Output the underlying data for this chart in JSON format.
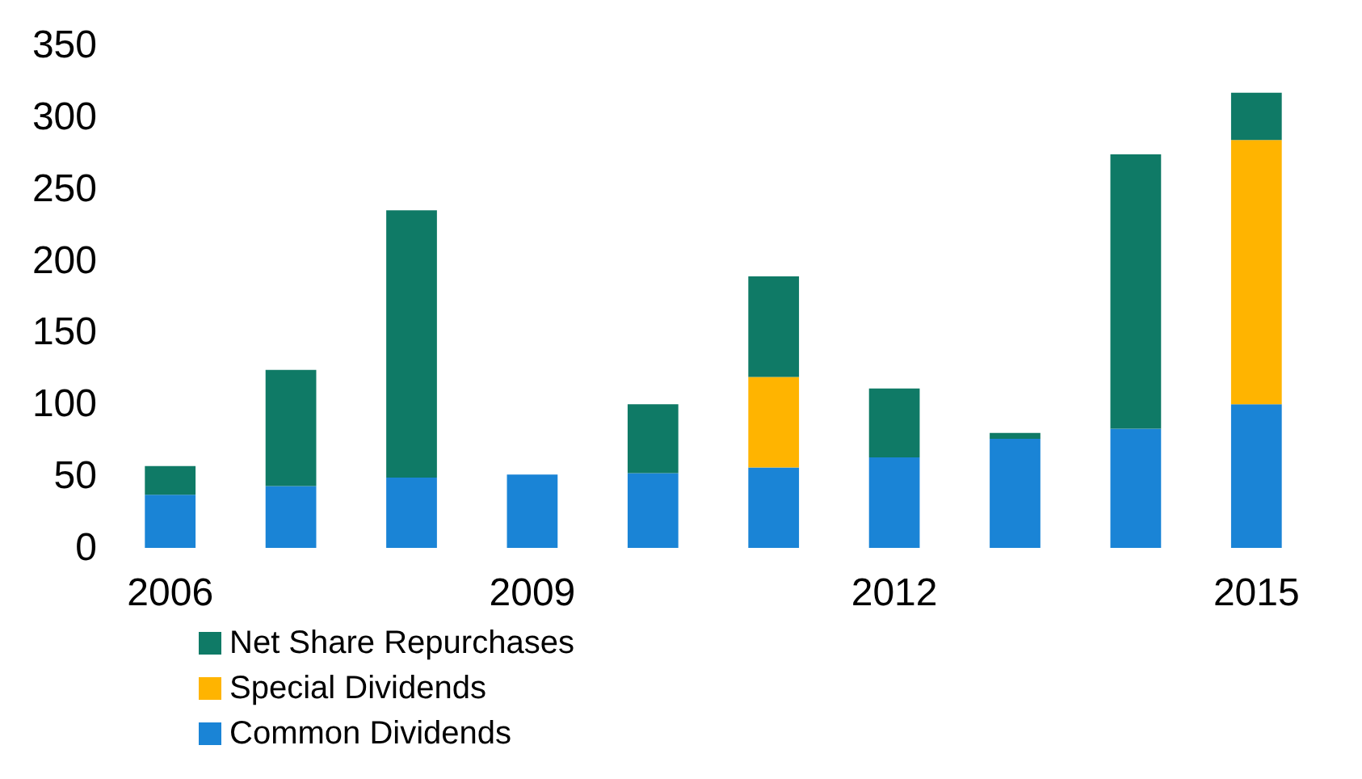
{
  "chart_data": {
    "type": "bar",
    "stacked": true,
    "categories": [
      "2006",
      null,
      null,
      "2009",
      null,
      null,
      "2012",
      null,
      null,
      "2015"
    ],
    "series": [
      {
        "name": "Common Dividends",
        "color": "#1a84d6",
        "values": [
          37,
          43,
          49,
          51,
          52,
          56,
          63,
          76,
          83,
          100
        ]
      },
      {
        "name": "Special Dividends",
        "color": "#ffb400",
        "values": [
          null,
          null,
          null,
          null,
          null,
          63,
          null,
          null,
          null,
          184
        ]
      },
      {
        "name": "Net Share Repurchases",
        "color": "#0f7a66",
        "values": [
          20,
          81,
          186,
          null,
          48,
          70,
          48,
          4,
          191,
          33
        ]
      }
    ],
    "ylim": [
      0,
      350
    ],
    "yticks": [
      0,
      50,
      100,
      150,
      200,
      250,
      300,
      350
    ],
    "grid": false,
    "legend": "bottom"
  }
}
